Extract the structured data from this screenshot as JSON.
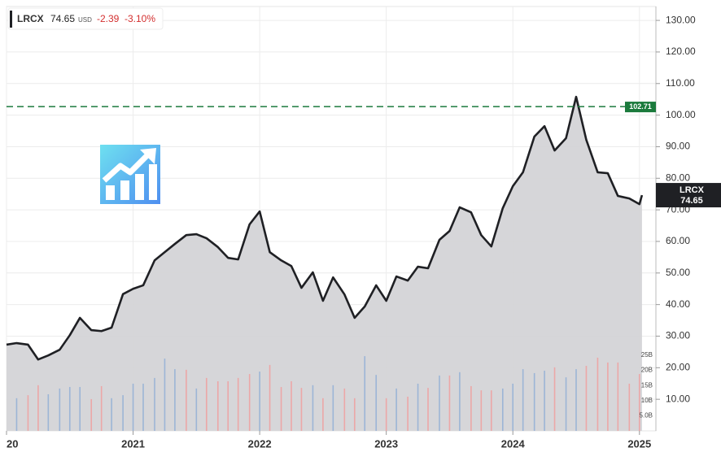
{
  "chart_data": {
    "type": "line",
    "header": {
      "symbol": "LRCX",
      "price": "74.65",
      "currency": "USD",
      "change": "-2.39",
      "change_percent": "-3.10%"
    },
    "x": [
      2020,
      2020.08,
      2020.17,
      2020.25,
      2020.33,
      2020.42,
      2020.5,
      2020.58,
      2020.67,
      2020.75,
      2020.83,
      2020.92,
      2021,
      2021.08,
      2021.17,
      2021.25,
      2021.33,
      2021.42,
      2021.5,
      2021.58,
      2021.67,
      2021.75,
      2021.83,
      2021.92,
      2022,
      2022.08,
      2022.17,
      2022.25,
      2022.33,
      2022.42,
      2022.5,
      2022.58,
      2022.67,
      2022.75,
      2022.83,
      2022.92,
      2023,
      2023.08,
      2023.17,
      2023.25,
      2023.33,
      2023.42,
      2023.5,
      2023.58,
      2023.67,
      2023.75,
      2023.83,
      2023.92,
      2024,
      2024.08,
      2024.17,
      2024.25,
      2024.33,
      2024.42,
      2024.5,
      2024.58,
      2024.67,
      2024.75,
      2024.83,
      2024.92,
      2025,
      2025.02
    ],
    "series": [
      {
        "name": "LRCX",
        "color": "#1f2024",
        "area_color": "#d4d4d7",
        "values": [
          27.3,
          27.8,
          27.3,
          22.6,
          23.9,
          25.7,
          30.3,
          35.8,
          31.9,
          31.6,
          32.7,
          43.3,
          45.0,
          46.1,
          54.0,
          56.6,
          59.2,
          62.0,
          62.3,
          61.0,
          58.2,
          54.8,
          54.3,
          65.4,
          69.5,
          56.6,
          54.0,
          52.2,
          45.3,
          50.2,
          41.2,
          48.6,
          43.2,
          35.8,
          39.4,
          46.1,
          41.2,
          48.9,
          47.6,
          52.0,
          51.5,
          60.5,
          63.3,
          70.8,
          69.2,
          62.0,
          58.4,
          70.5,
          77.5,
          81.9,
          93.2,
          96.5,
          88.8,
          92.7,
          105.8,
          92.2,
          81.9,
          81.6,
          74.4,
          73.6,
          71.8,
          74.65
        ]
      }
    ],
    "reference_line": {
      "value": 102.71,
      "color": "#1b7a3c"
    },
    "xlim": [
      2020,
      2025.13
    ],
    "xticks": [
      {
        "value": 2020,
        "label": "20"
      },
      2021,
      2022,
      2023,
      2024,
      2025
    ],
    "ylim": [
      0,
      134.4
    ],
    "yticks": [
      {
        "value": 10,
        "label": "10.00"
      },
      {
        "value": 20,
        "label": "20.00"
      },
      {
        "value": 30,
        "label": "30.00"
      },
      {
        "value": 40,
        "label": "40.00"
      },
      {
        "value": 50,
        "label": "50.00"
      },
      {
        "value": 60,
        "label": "60.00"
      },
      {
        "value": 70,
        "label": "70.00"
      },
      {
        "value": 80,
        "label": "80.00"
      },
      {
        "value": 90,
        "label": "90.00"
      },
      {
        "value": 100,
        "label": "100.00"
      },
      {
        "value": 110,
        "label": "110.00"
      },
      {
        "value": 120,
        "label": "120.00"
      },
      {
        "value": 130,
        "label": "130.00"
      }
    ],
    "grid": true,
    "volume": {
      "x": [
        2020.08,
        2020.17,
        2020.25,
        2020.33,
        2020.42,
        2020.5,
        2020.58,
        2020.67,
        2020.75,
        2020.83,
        2020.92,
        2021,
        2021.08,
        2021.17,
        2021.25,
        2021.33,
        2021.42,
        2021.5,
        2021.58,
        2021.67,
        2021.75,
        2021.83,
        2021.92,
        2022,
        2022.08,
        2022.17,
        2022.25,
        2022.33,
        2022.42,
        2022.5,
        2022.58,
        2022.67,
        2022.75,
        2022.83,
        2022.92,
        2023,
        2023.08,
        2023.17,
        2023.25,
        2023.33,
        2023.42,
        2023.5,
        2023.58,
        2023.67,
        2023.75,
        2023.83,
        2023.92,
        2024,
        2024.08,
        2024.17,
        2024.25,
        2024.33,
        2024.42,
        2024.5,
        2024.58,
        2024.67,
        2024.75,
        2024.83,
        2024.92,
        2025
      ],
      "values": [
        10.8,
        11.8,
        15.1,
        12.1,
        14.0,
        14.5,
        14.5,
        10.5,
        14.8,
        10.8,
        11.8,
        15.6,
        15.6,
        17.5,
        23.9,
        20.4,
        20.2,
        14.0,
        17.5,
        16.4,
        16.4,
        17.5,
        18.8,
        19.6,
        21.8,
        14.5,
        16.4,
        14.2,
        15.1,
        10.8,
        15.1,
        14.0,
        10.8,
        24.7,
        18.5,
        10.8,
        14.0,
        11.3,
        15.6,
        14.2,
        18.3,
        18.3,
        19.4,
        14.8,
        13.4,
        13.4,
        14.0,
        15.6,
        20.4,
        19.1,
        19.9,
        21.0,
        17.7,
        20.4,
        21.5,
        24.2,
        22.6,
        22.6,
        15.6,
        18.8
      ],
      "colors": [
        "#9cb5d6",
        "#eca7a7",
        "#eca7a7",
        "#9cb5d6",
        "#9cb5d6",
        "#9cb5d6",
        "#9cb5d6",
        "#eca7a7",
        "#eca7a7",
        "#9cb5d6",
        "#9cb5d6",
        "#9cb5d6",
        "#9cb5d6",
        "#9cb5d6",
        "#9cb5d6",
        "#9cb5d6",
        "#eca7a7",
        "#9cb5d6",
        "#eca7a7",
        "#eca7a7",
        "#eca7a7",
        "#eca7a7",
        "#eca7a7",
        "#9cb5d6",
        "#eca7a7",
        "#eca7a7",
        "#eca7a7",
        "#eca7a7",
        "#9cb5d6",
        "#eca7a7",
        "#9cb5d6",
        "#eca7a7",
        "#eca7a7",
        "#9cb5d6",
        "#9cb5d6",
        "#eca7a7",
        "#9cb5d6",
        "#eca7a7",
        "#9cb5d6",
        "#eca7a7",
        "#9cb5d6",
        "#eca7a7",
        "#9cb5d6",
        "#eca7a7",
        "#eca7a7",
        "#eca7a7",
        "#9cb5d6",
        "#9cb5d6",
        "#9cb5d6",
        "#9cb5d6",
        "#9cb5d6",
        "#eca7a7",
        "#9cb5d6",
        "#9cb5d6",
        "#eca7a7",
        "#eca7a7",
        "#eca7a7",
        "#eca7a7",
        "#eca7a7",
        "#eca7a7"
      ],
      "ylim": [
        0,
        140.3
      ],
      "yticks": [
        {
          "value": 5,
          "label": "5.0B"
        },
        {
          "value": 10,
          "label": "10B"
        },
        {
          "value": 15,
          "label": "15B"
        },
        {
          "value": 20,
          "label": "20B"
        },
        {
          "value": 25,
          "label": "25B"
        }
      ]
    }
  }
}
